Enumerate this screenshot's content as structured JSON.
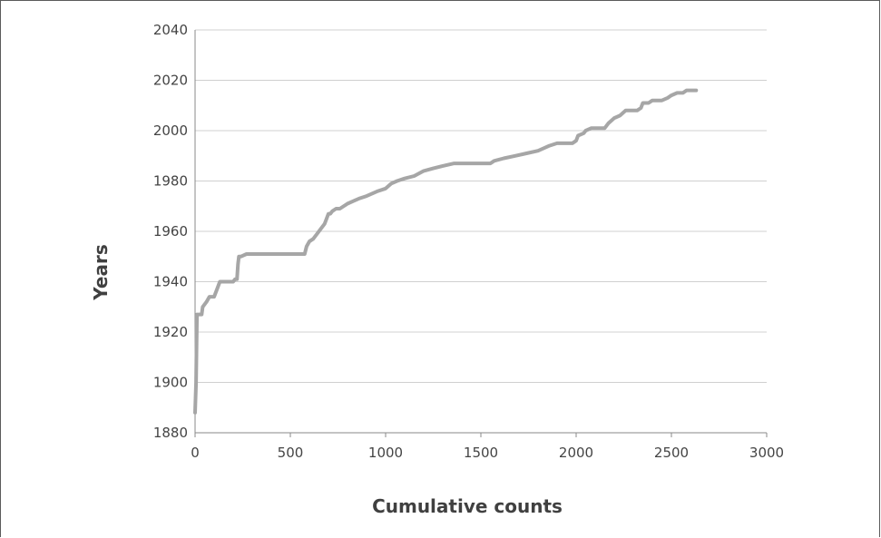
{
  "chart_data": {
    "type": "line",
    "title": "",
    "xlabel": "Cumulative counts",
    "ylabel": "Years",
    "xlim": [
      0,
      3000
    ],
    "ylim": [
      1880,
      2040
    ],
    "x_ticks": [
      "0",
      "500",
      "1000",
      "1500",
      "2000",
      "2500",
      "3000"
    ],
    "y_ticks": [
      "1880",
      "1900",
      "1920",
      "1940",
      "1960",
      "1980",
      "2000",
      "2020",
      "2040"
    ],
    "grid": "horizontal",
    "legend": "none",
    "line_color": "#a6a6a6",
    "series": [
      {
        "x": [
          0,
          5,
          10,
          35,
          40,
          60,
          75,
          100,
          120,
          130,
          200,
          210,
          220,
          225,
          230,
          240,
          270,
          280,
          575,
          585,
          600,
          620,
          640,
          660,
          680,
          700,
          710,
          720,
          740,
          760,
          800,
          830,
          860,
          900,
          960,
          1000,
          1030,
          1060,
          1100,
          1150,
          1200,
          1250,
          1300,
          1360,
          1550,
          1570,
          1620,
          1680,
          1740,
          1800,
          1860,
          1900,
          1980,
          2000,
          2010,
          2040,
          2050,
          2080,
          2150,
          2170,
          2200,
          2230,
          2260,
          2320,
          2340,
          2350,
          2380,
          2400,
          2450,
          2480,
          2500,
          2530,
          2560,
          2580,
          2600,
          2630
        ],
        "y": [
          1888,
          1900,
          1927,
          1927,
          1930,
          1932,
          1934,
          1934,
          1938,
          1940,
          1940,
          1941,
          1941,
          1947,
          1950,
          1950,
          1951,
          1951,
          1951,
          1954,
          1956,
          1957,
          1959,
          1961,
          1963,
          1967,
          1967,
          1968,
          1969,
          1969,
          1971,
          1972,
          1973,
          1974,
          1976,
          1977,
          1979,
          1980,
          1981,
          1982,
          1984,
          1985,
          1986,
          1987,
          1987,
          1988,
          1989,
          1990,
          1991,
          1992,
          1994,
          1995,
          1995,
          1996,
          1998,
          1999,
          2000,
          2001,
          2001,
          2003,
          2005,
          2006,
          2008,
          2008,
          2009,
          2011,
          2011,
          2012,
          2012,
          2013,
          2014,
          2015,
          2015,
          2016,
          2016,
          2016
        ]
      }
    ]
  }
}
